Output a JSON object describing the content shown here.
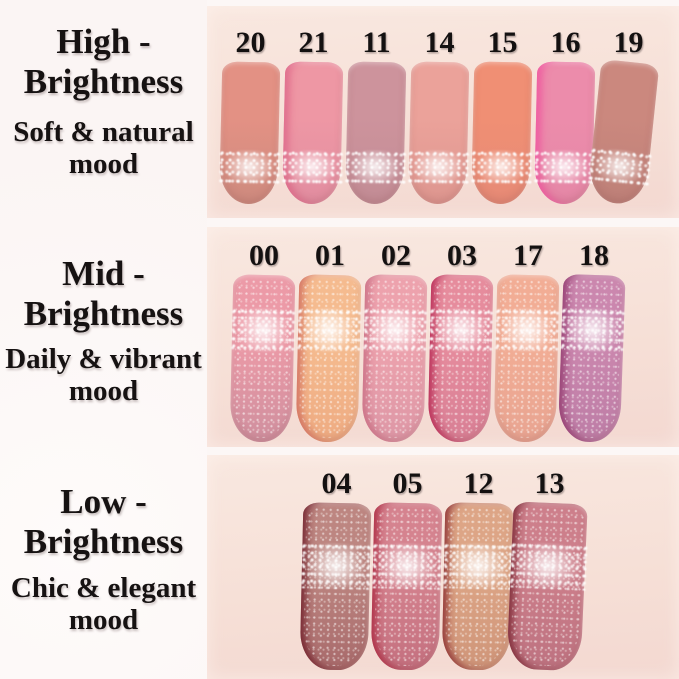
{
  "colors": {
    "page_background": "#fcf7f6",
    "skin_top": "#f9e8e0",
    "skin_mid": "#f6dfd6",
    "skin_bottom": "#f3d8d1",
    "text": "#141111"
  },
  "rows": [
    {
      "id": "high",
      "brightness_title": [
        "High -",
        "Brightness"
      ],
      "mood": [
        "Soft & natural",
        "mood"
      ],
      "swatches": [
        {
          "number": "20",
          "top": "#e39184",
          "bottom": "#cd8a7e"
        },
        {
          "number": "21",
          "top": "#ee97a4",
          "bottom": "#e18da0",
          "edge": "#e0688a"
        },
        {
          "number": "11",
          "top": "#cd939c",
          "bottom": "#c28c95"
        },
        {
          "number": "14",
          "top": "#eba29a",
          "bottom": "#dd968f"
        },
        {
          "number": "15",
          "top": "#f08f74",
          "bottom": "#e68a76"
        },
        {
          "number": "16",
          "top": "#ec8cab",
          "bottom": "#e487a6",
          "edge": "#f254a0"
        },
        {
          "number": "19",
          "top": "#cb887e",
          "bottom": "#bd8078"
        }
      ]
    },
    {
      "id": "mid",
      "brightness_title": [
        "Mid -",
        "Brightness"
      ],
      "mood": [
        "Daily & vibrant",
        "mood"
      ],
      "swatches": [
        {
          "number": "00",
          "top": "#ec9aa7",
          "bottom": "#cf8f9e"
        },
        {
          "number": "01",
          "top": "#f5bb8f",
          "bottom": "#eeab82",
          "edge": "#d4705f"
        },
        {
          "number": "02",
          "top": "#eda2ad",
          "bottom": "#dd97a6",
          "edge": "#cc6f85"
        },
        {
          "number": "03",
          "top": "#e68c9d",
          "bottom": "#d87f95",
          "edge": "#b92753"
        },
        {
          "number": "17",
          "top": "#f2ad95",
          "bottom": "#e8a491"
        },
        {
          "number": "18",
          "top": "#cb87ae",
          "bottom": "#bd7da6",
          "edge": "#93386f"
        }
      ]
    },
    {
      "id": "low",
      "brightness_title": [
        "Low -",
        "Brightness"
      ],
      "mood": [
        "Chic & elegant",
        "mood"
      ],
      "swatches": [
        {
          "number": "04",
          "top": "#bd8681",
          "bottom": "#a86a6b",
          "edge": "#701d28"
        },
        {
          "number": "05",
          "top": "#d5838f",
          "bottom": "#c4707f",
          "edge": "#ad2840"
        },
        {
          "number": "12",
          "top": "#dda586",
          "bottom": "#cf9579",
          "edge": "#8e2f30"
        },
        {
          "number": "13",
          "top": "#cd7f8b",
          "bottom": "#bd7280",
          "edge": "#7c2633"
        }
      ]
    }
  ]
}
